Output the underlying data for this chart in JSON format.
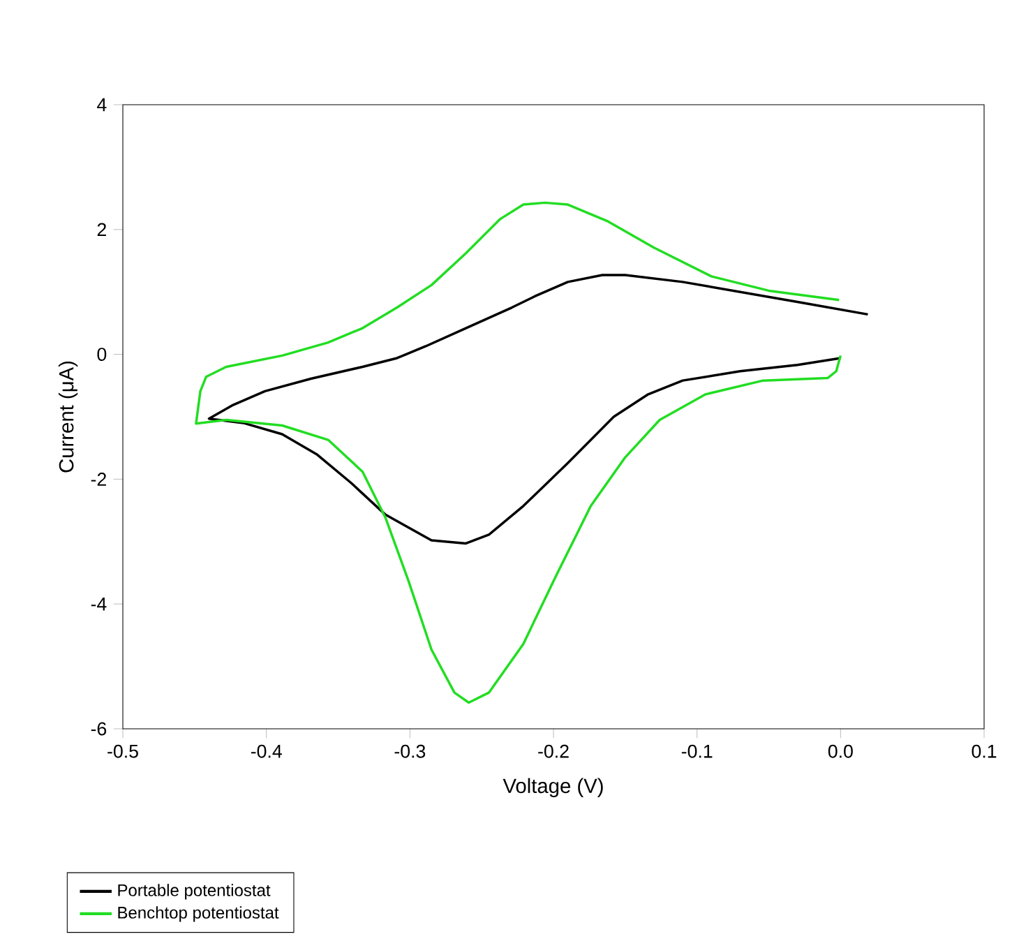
{
  "chart_data": {
    "type": "line",
    "xlabel": "Voltage (V)",
    "ylabel": "Current (μA)",
    "xlim": [
      -0.5,
      0.1
    ],
    "xticks": [
      {
        "value": -0.5,
        "label": "-0.5"
      },
      {
        "value": -0.4,
        "label": "-0.4"
      },
      {
        "value": -0.3,
        "label": "-0.3"
      },
      {
        "value": -0.2,
        "label": "-0.2"
      },
      {
        "value": -0.1,
        "label": "-0.1"
      },
      {
        "value": 0.0,
        "label": "0.0"
      },
      {
        "value": 0.1,
        "label": "0.1"
      }
    ],
    "ylim": [
      -6,
      4
    ],
    "yticks": [
      -6,
      -4,
      -2,
      0,
      2,
      4
    ],
    "grid": false,
    "legend": "bottom left",
    "marker": "none",
    "line_style": "solid",
    "series": [
      {
        "name": "Portable potentiostat",
        "color": "#000000",
        "x": [
          0.019,
          -0.03,
          -0.11,
          -0.15,
          -0.166,
          -0.19,
          -0.213,
          -0.229,
          -0.261,
          -0.289,
          -0.309,
          -0.333,
          -0.369,
          -0.401,
          -0.424,
          -0.44,
          -0.416,
          -0.389,
          -0.365,
          -0.341,
          -0.317,
          -0.285,
          -0.261,
          -0.245,
          -0.221,
          -0.19,
          -0.158,
          -0.134,
          -0.11,
          -0.07,
          -0.03,
          0.0
        ],
        "values": [
          0.64,
          0.84,
          1.16,
          1.27,
          1.27,
          1.16,
          0.93,
          0.75,
          0.42,
          0.13,
          -0.06,
          -0.2,
          -0.39,
          -0.59,
          -0.82,
          -1.03,
          -1.1,
          -1.28,
          -1.6,
          -2.06,
          -2.57,
          -2.98,
          -3.03,
          -2.89,
          -2.43,
          -1.74,
          -1.0,
          -0.64,
          -0.42,
          -0.27,
          -0.17,
          -0.06
        ]
      },
      {
        "name": "Benchtop potentiostat",
        "color": "#22dd22",
        "x": [
          -0.001,
          -0.05,
          -0.09,
          -0.13,
          -0.162,
          -0.19,
          -0.206,
          -0.221,
          -0.237,
          -0.261,
          -0.285,
          -0.309,
          -0.333,
          -0.357,
          -0.389,
          -0.428,
          -0.442,
          -0.446,
          -0.449,
          -0.428,
          -0.389,
          -0.357,
          -0.333,
          -0.317,
          -0.301,
          -0.285,
          -0.269,
          -0.259,
          -0.245,
          -0.221,
          -0.198,
          -0.174,
          -0.15,
          -0.126,
          -0.094,
          -0.054,
          -0.009,
          -0.003,
          0.0
        ],
        "values": [
          0.87,
          1.02,
          1.25,
          1.71,
          2.13,
          2.4,
          2.43,
          2.4,
          2.17,
          1.62,
          1.11,
          0.75,
          0.42,
          0.19,
          -0.02,
          -0.2,
          -0.36,
          -0.59,
          -1.11,
          -1.05,
          -1.14,
          -1.37,
          -1.88,
          -2.62,
          -3.63,
          -4.73,
          -5.42,
          -5.58,
          -5.42,
          -4.64,
          -3.54,
          -2.43,
          -1.65,
          -1.05,
          -0.64,
          -0.42,
          -0.38,
          -0.27,
          -0.02
        ]
      }
    ]
  }
}
